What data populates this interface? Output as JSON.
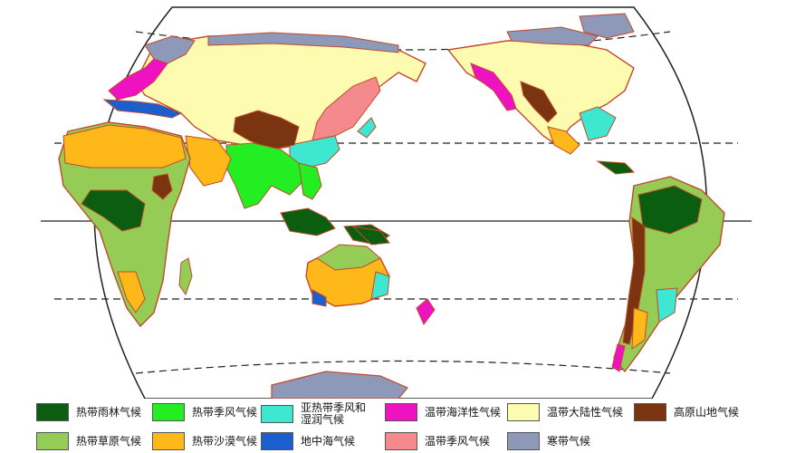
{
  "legend": [
    {
      "label": "热带雨林气候",
      "color": "#0b5e10"
    },
    {
      "label": "热带季风气候",
      "color": "#22ee22"
    },
    {
      "label": "亚热带季风和湿润气候",
      "color": "#3ee8d0"
    },
    {
      "label": "温带海洋性气候",
      "color": "#ee12c0"
    },
    {
      "label": "温带大陆性气候",
      "color": "#fdfbb0"
    },
    {
      "label": "高原山地气候",
      "color": "#7a3410"
    },
    {
      "label": "热带草原气候",
      "color": "#95cc55"
    },
    {
      "label": "热带沙漠气候",
      "color": "#ffb819"
    },
    {
      "label": "地中海气候",
      "color": "#1b5fcf"
    },
    {
      "label": "温带季风气候",
      "color": "#f58a8c"
    },
    {
      "label": "寒带气候",
      "color": "#8e98b8"
    }
  ],
  "colors": {
    "land_border": "#c24a2a",
    "frame": "#222222",
    "ocean": "#ffffff"
  }
}
